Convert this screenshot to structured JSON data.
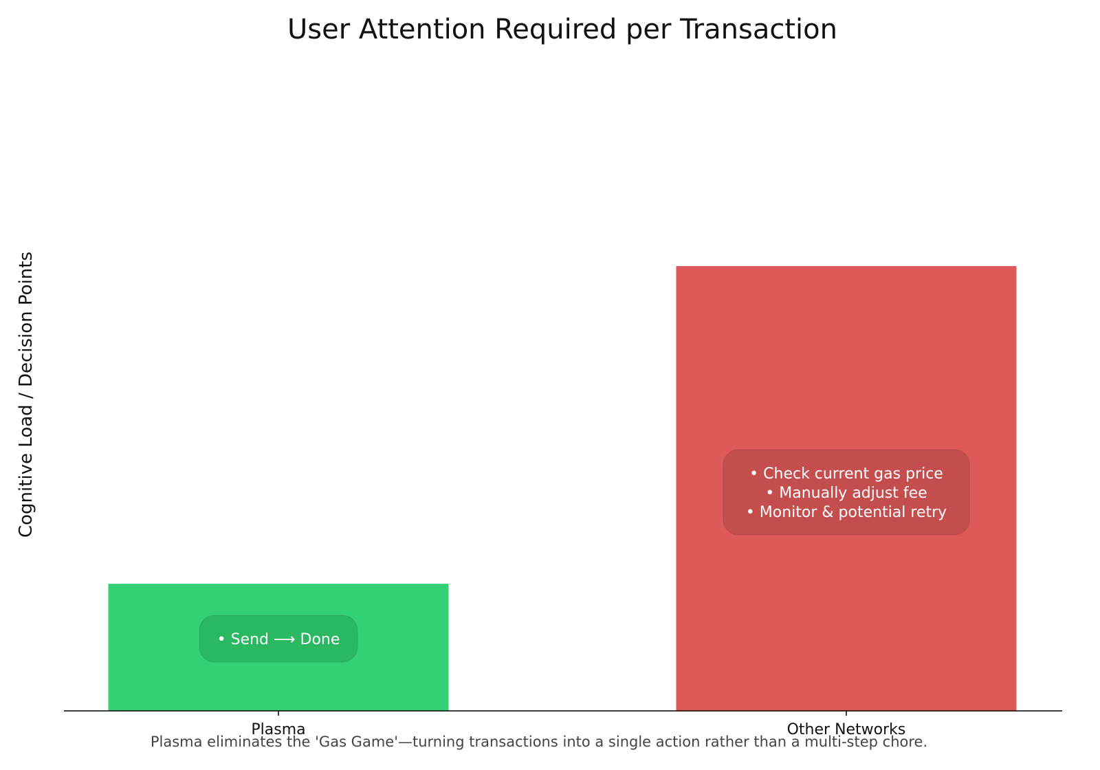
{
  "chart_data": {
    "type": "bar",
    "title": "User Attention Required per Transaction",
    "xlabel": "",
    "ylabel": "Cognitive Load / Decision Points",
    "categories": [
      "Plasma",
      "Other Networks"
    ],
    "values": [
      1,
      3.5
    ],
    "ylim": [
      0,
      5
    ],
    "colors": [
      "#34d174",
      "#dc5a58"
    ],
    "annotation_box_colors": [
      "#2bb863",
      "#c44d4e"
    ],
    "annotations": [
      [
        "• Send ⟶ Done"
      ],
      [
        "• Check current gas price",
        "• Manually adjust fee",
        "• Monitor & potential retry"
      ]
    ],
    "grid": false,
    "y_ticks_visible": false
  },
  "caption": "Plasma eliminates the 'Gas Game'—turning transactions into a single action rather than a multi-step chore."
}
